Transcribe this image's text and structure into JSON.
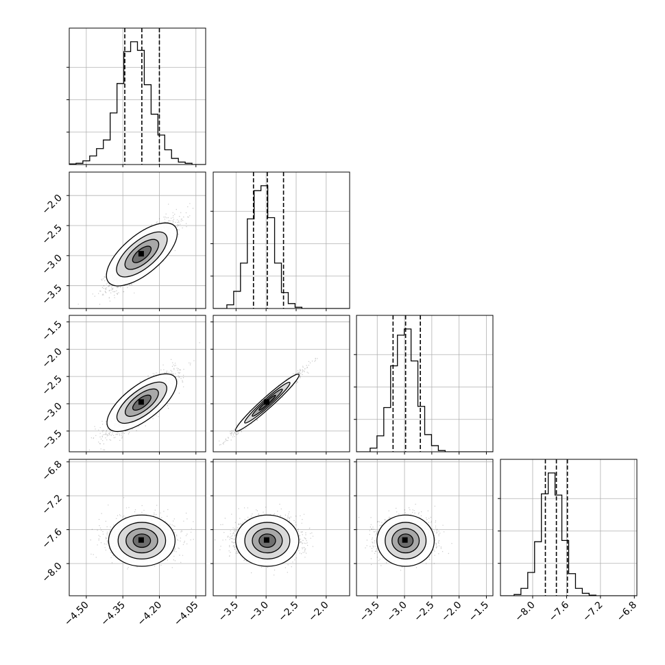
{
  "chart_data": {
    "type": "corner",
    "grid": true,
    "quantile_lines": "dashed, 3 per diagonal histogram",
    "parameters": [
      {
        "ticks": [
          -4.5,
          -4.35,
          -4.2,
          -4.05
        ],
        "tick_labels": [
          "−4.50",
          "−4.35",
          "−4.20",
          "−4.05"
        ],
        "range": [
          -4.57,
          -4.01
        ],
        "quantiles": [
          -4.342,
          -4.272,
          -4.2
        ]
      },
      {
        "ticks": [
          -3.5,
          -3.0,
          -2.5,
          -2.0
        ],
        "tick_labels": [
          "−3.5",
          "−3.0",
          "−2.5",
          "−2.0"
        ],
        "range": [
          -3.88,
          -1.61
        ],
        "quantiles": [
          -3.21,
          -2.98,
          -2.71
        ]
      },
      {
        "ticks": [
          -3.5,
          -3.0,
          -2.5,
          -2.0,
          -1.5
        ],
        "tick_labels": [
          "−3.5",
          "−3.0",
          "−2.5",
          "−2.0",
          "−1.5"
        ],
        "range": [
          -3.88,
          -1.38
        ],
        "quantiles": [
          -3.21,
          -2.98,
          -2.71
        ]
      },
      {
        "ticks": [
          -8.0,
          -7.6,
          -7.2,
          -6.8
        ],
        "tick_labels": [
          "−8.0",
          "−7.6",
          "−7.2",
          "−6.8"
        ],
        "range": [
          -8.38,
          -6.77
        ],
        "quantiles": [
          -7.85,
          -7.72,
          -7.59
        ]
      }
    ],
    "marginal_histograms": [
      [
        0.005,
        0.01,
        0.03,
        0.07,
        0.13,
        0.2,
        0.42,
        0.66,
        0.92,
        1.0,
        0.93,
        0.65,
        0.41,
        0.24,
        0.12,
        0.05,
        0.02,
        0.01,
        0.0,
        0.0
      ],
      [
        0.0,
        0.0,
        0.03,
        0.14,
        0.37,
        0.73,
        0.96,
        1.0,
        0.74,
        0.37,
        0.13,
        0.04,
        0.01,
        0.0,
        0.0,
        0.0,
        0.0,
        0.0,
        0.0,
        0.0
      ],
      [
        0.0,
        0.0,
        0.03,
        0.13,
        0.36,
        0.7,
        0.95,
        1.0,
        0.74,
        0.37,
        0.14,
        0.05,
        0.01,
        0.0,
        0.0,
        0.0,
        0.0,
        0.0,
        0.0,
        0.0
      ],
      [
        0.0,
        0.0,
        0.01,
        0.06,
        0.19,
        0.44,
        0.83,
        1.0,
        0.82,
        0.45,
        0.18,
        0.06,
        0.02,
        0.005,
        0.0,
        0.0,
        0.0,
        0.0,
        0.0,
        0.0
      ]
    ],
    "pair_correlations": [
      {
        "row": 1,
        "col": 0,
        "rho": 0.85,
        "mean_x": -4.272,
        "mean_y": -2.98,
        "sd_x": 0.065,
        "sd_y": 0.26
      },
      {
        "row": 2,
        "col": 0,
        "rho": 0.85,
        "mean_x": -4.272,
        "mean_y": -2.98,
        "sd_x": 0.065,
        "sd_y": 0.26
      },
      {
        "row": 2,
        "col": 1,
        "rho": 0.985,
        "mean_x": -2.98,
        "mean_y": -2.98,
        "sd_x": 0.25,
        "sd_y": 0.25
      },
      {
        "row": 3,
        "col": 0,
        "rho": 0.1,
        "mean_x": -4.272,
        "mean_y": -7.73,
        "sd_x": 0.065,
        "sd_y": 0.12
      },
      {
        "row": 3,
        "col": 1,
        "rho": 0.1,
        "mean_x": -2.98,
        "mean_y": -7.73,
        "sd_x": 0.25,
        "sd_y": 0.12
      },
      {
        "row": 3,
        "col": 2,
        "rho": 0.1,
        "mean_x": -2.98,
        "mean_y": -7.73,
        "sd_x": 0.25,
        "sd_y": 0.12
      }
    ]
  }
}
